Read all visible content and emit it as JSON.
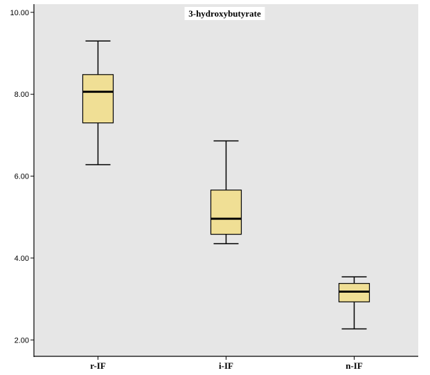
{
  "chart_data": {
    "type": "box",
    "title": "3-hydroxybutyrate",
    "xlabel": "",
    "ylabel": "",
    "ylim": [
      1.6,
      10.2
    ],
    "yticks": [
      2.0,
      4.0,
      6.0,
      8.0,
      10.0
    ],
    "ytick_labels": [
      "2.00",
      "4.00",
      "6.00",
      "8.00",
      "10.00"
    ],
    "categories": [
      "r-IF",
      "i-IF",
      "n-IF"
    ],
    "boxes": [
      {
        "category": "r-IF",
        "min": 6.28,
        "q1": 7.3,
        "median": 8.06,
        "q3": 8.48,
        "max": 9.3
      },
      {
        "category": "i-IF",
        "min": 4.35,
        "q1": 4.58,
        "median": 4.96,
        "q3": 5.66,
        "max": 6.86
      },
      {
        "category": "n-IF",
        "min": 2.27,
        "q1": 2.93,
        "median": 3.18,
        "q3": 3.38,
        "max": 3.54
      }
    ],
    "grid": false,
    "colors": {
      "plot_background": "#e6e6e6",
      "box_fill": "#f0df95",
      "line": "#000000",
      "title_background": "#ffffff"
    }
  }
}
